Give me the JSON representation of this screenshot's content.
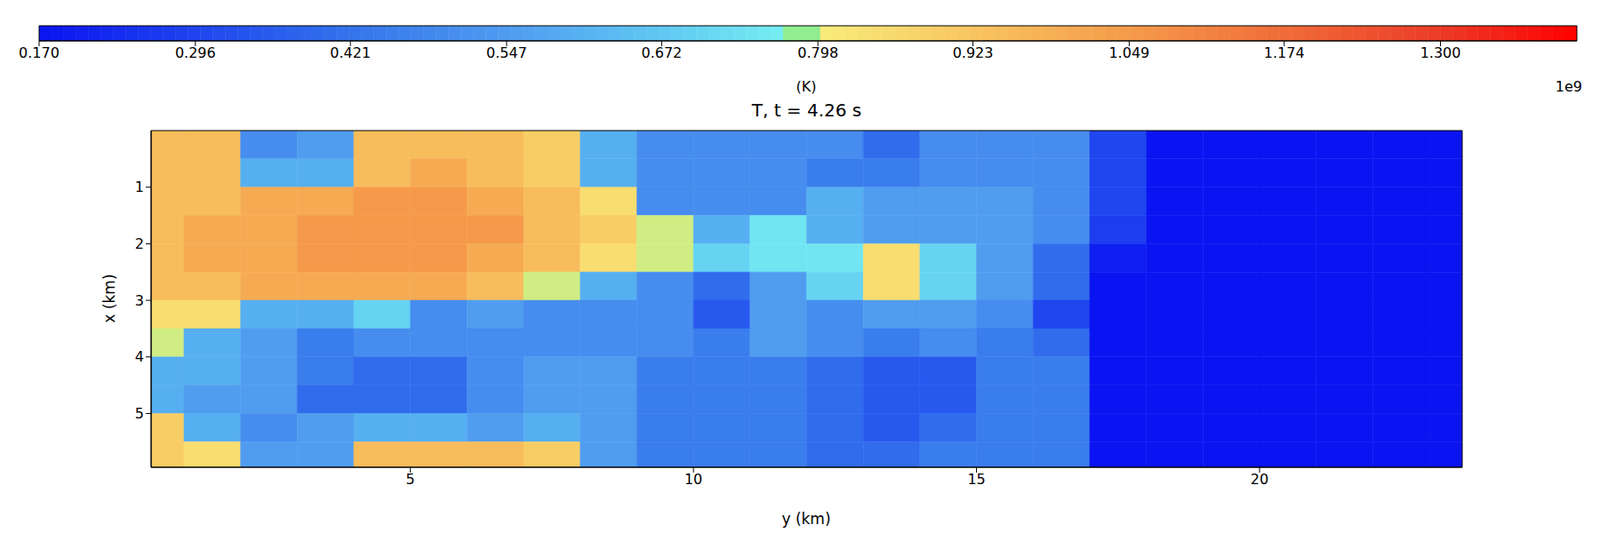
{
  "chart_data": {
    "type": "heatmap",
    "title": "T, t = 4.26 s",
    "x_label": "y (km)",
    "y_label": "x (km)",
    "xlim": [
      0.42,
      23.58
    ],
    "xticks": [
      5,
      10,
      15,
      20
    ],
    "ylim": [
      5.95,
      0
    ],
    "yticks": [
      1,
      2,
      3,
      4,
      5
    ],
    "x_edges": [
      0,
      1,
      2,
      3,
      4,
      5,
      6,
      7,
      8,
      9,
      10,
      11,
      12,
      13,
      14,
      15,
      16,
      17,
      18,
      19,
      20,
      21,
      22,
      23,
      24
    ],
    "y_edges": [
      0,
      0.5,
      1,
      1.5,
      2,
      2.5,
      3,
      3.5,
      4,
      4.5,
      5,
      5.5,
      6
    ],
    "cells": [
      [
        0.95,
        0.95,
        0.5,
        0.55,
        0.95,
        0.95,
        0.95,
        0.9,
        0.6,
        0.5,
        0.5,
        0.5,
        0.5,
        0.4,
        0.5,
        0.5,
        0.5,
        0.3,
        0.17,
        0.17,
        0.17,
        0.17,
        0.17,
        0.17
      ],
      [
        0.95,
        0.95,
        0.6,
        0.6,
        0.95,
        1.0,
        0.95,
        0.9,
        0.6,
        0.5,
        0.5,
        0.5,
        0.45,
        0.45,
        0.5,
        0.5,
        0.5,
        0.3,
        0.17,
        0.17,
        0.17,
        0.17,
        0.17,
        0.17
      ],
      [
        0.95,
        0.95,
        1.0,
        1.0,
        1.05,
        1.05,
        1.0,
        0.95,
        0.85,
        0.5,
        0.5,
        0.5,
        0.6,
        0.55,
        0.55,
        0.55,
        0.5,
        0.3,
        0.17,
        0.17,
        0.17,
        0.17,
        0.17,
        0.17
      ],
      [
        0.95,
        1.0,
        1.0,
        1.05,
        1.05,
        1.05,
        1.05,
        0.95,
        0.9,
        0.8,
        0.6,
        0.75,
        0.6,
        0.55,
        0.55,
        0.55,
        0.5,
        0.28,
        0.17,
        0.17,
        0.17,
        0.17,
        0.17,
        0.17
      ],
      [
        0.95,
        1.0,
        1.0,
        1.05,
        1.05,
        1.05,
        1.0,
        0.95,
        0.85,
        0.8,
        0.7,
        0.75,
        0.75,
        0.85,
        0.7,
        0.55,
        0.4,
        0.2,
        0.17,
        0.17,
        0.17,
        0.17,
        0.17,
        0.17
      ],
      [
        0.95,
        0.95,
        1.0,
        1.0,
        1.0,
        1.0,
        0.95,
        0.8,
        0.6,
        0.5,
        0.4,
        0.55,
        0.7,
        0.85,
        0.7,
        0.55,
        0.4,
        0.17,
        0.17,
        0.17,
        0.17,
        0.17,
        0.17,
        0.17
      ],
      [
        0.85,
        0.85,
        0.6,
        0.6,
        0.7,
        0.5,
        0.55,
        0.5,
        0.5,
        0.5,
        0.35,
        0.55,
        0.5,
        0.55,
        0.55,
        0.5,
        0.3,
        0.17,
        0.17,
        0.17,
        0.17,
        0.17,
        0.17,
        0.17
      ],
      [
        0.8,
        0.6,
        0.55,
        0.45,
        0.5,
        0.5,
        0.5,
        0.5,
        0.5,
        0.5,
        0.45,
        0.55,
        0.5,
        0.45,
        0.5,
        0.45,
        0.4,
        0.17,
        0.17,
        0.17,
        0.17,
        0.17,
        0.17,
        0.17
      ],
      [
        0.6,
        0.6,
        0.55,
        0.45,
        0.4,
        0.4,
        0.5,
        0.55,
        0.55,
        0.45,
        0.45,
        0.45,
        0.4,
        0.35,
        0.35,
        0.45,
        0.45,
        0.17,
        0.17,
        0.17,
        0.17,
        0.17,
        0.17,
        0.17
      ],
      [
        0.6,
        0.55,
        0.55,
        0.4,
        0.4,
        0.4,
        0.5,
        0.55,
        0.55,
        0.45,
        0.45,
        0.45,
        0.4,
        0.35,
        0.35,
        0.45,
        0.45,
        0.17,
        0.17,
        0.17,
        0.17,
        0.17,
        0.17,
        0.17
      ],
      [
        0.9,
        0.6,
        0.5,
        0.55,
        0.6,
        0.6,
        0.55,
        0.6,
        0.55,
        0.45,
        0.45,
        0.45,
        0.4,
        0.35,
        0.4,
        0.45,
        0.45,
        0.17,
        0.17,
        0.17,
        0.17,
        0.17,
        0.17,
        0.17
      ],
      [
        0.9,
        0.85,
        0.55,
        0.55,
        0.95,
        0.95,
        0.95,
        0.9,
        0.55,
        0.45,
        0.45,
        0.45,
        0.4,
        0.4,
        0.45,
        0.45,
        0.45,
        0.17,
        0.17,
        0.17,
        0.17,
        0.17,
        0.17,
        0.17
      ]
    ],
    "colorbar": {
      "label": "(K)",
      "offset_label": "1e9",
      "range": [
        0.17,
        1.41
      ],
      "ticks": [
        {
          "value": 0.17,
          "label": "0.170"
        },
        0.296,
        0.421,
        0.547,
        0.672,
        0.798,
        0.923,
        1.049,
        1.174,
        {
          "value": 1.3,
          "label": "1.300"
        }
      ]
    }
  }
}
